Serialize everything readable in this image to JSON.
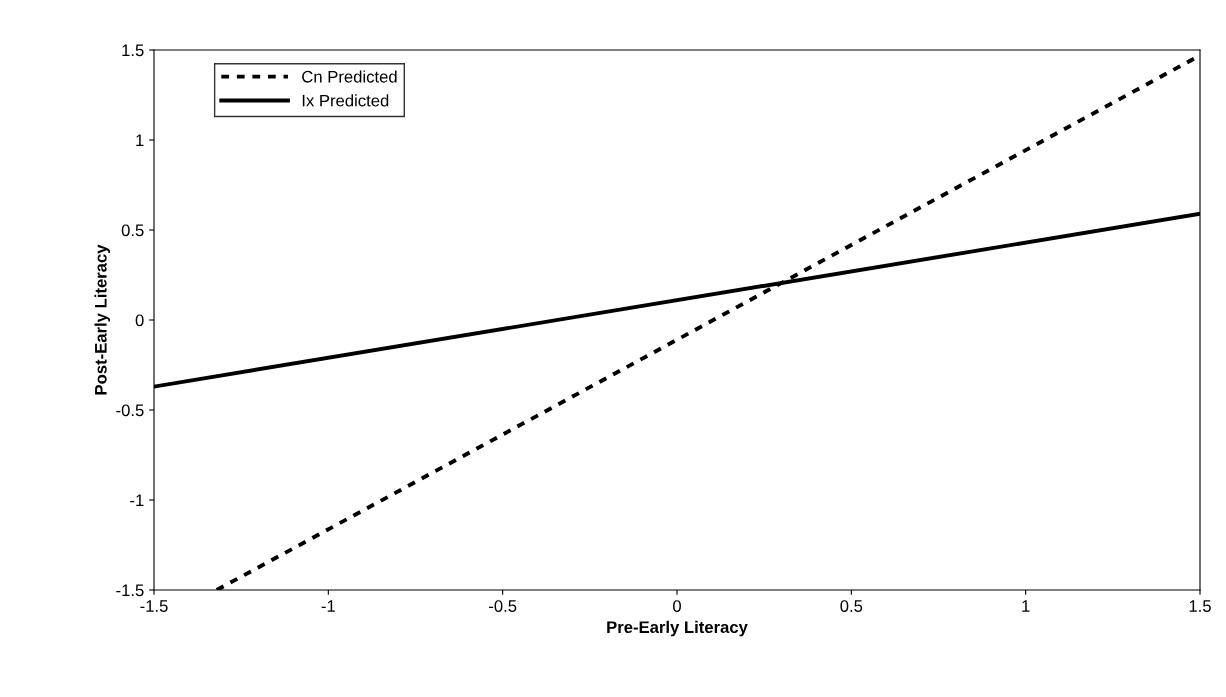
{
  "chart_data": {
    "type": "line",
    "xlabel": "Pre-Early Literacy",
    "ylabel": "Post-Early Literacy",
    "xlim": [
      -1.5,
      1.5
    ],
    "xticks": [
      -1.5,
      -1,
      -0.5,
      0,
      0.5,
      1,
      1.5
    ],
    "ylim": [
      -1.5,
      1.5
    ],
    "yticks": [
      -1.5,
      -1,
      -0.5,
      0,
      0.5,
      1,
      1.5
    ],
    "grid": false,
    "legend": "top left",
    "marker": "none",
    "series": [
      {
        "name": "Cn Predicted",
        "color": "#000000",
        "line_style": "dashed",
        "x": [
          -1.32,
          1.5
        ],
        "values": [
          -1.5,
          1.47
        ]
      },
      {
        "name": "Ix Predicted",
        "color": "#000000",
        "line_style": "solid",
        "x": [
          -1.5,
          1.5
        ],
        "values": [
          -0.37,
          0.59
        ]
      }
    ]
  }
}
